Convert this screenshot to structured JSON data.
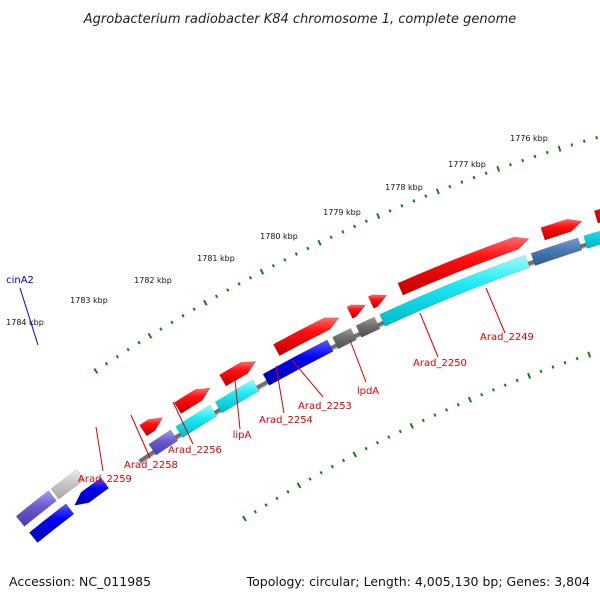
{
  "title": "Agrobacterium radiobacter K84 chromosome 1, complete genome",
  "footer": {
    "accession": "Accession: NC_011985",
    "summary": "Topology: circular; Length: 4,005,130 bp; Genes: 3,804"
  },
  "scale": {
    "labels": [
      "1776 kbp",
      "1777 kbp",
      "1778 kbp",
      "1779 kbp",
      "1780 kbp",
      "1781 kbp",
      "1782 kbp",
      "1783 kbp",
      "1784 kbp"
    ]
  },
  "genes": [
    {
      "name": "cinA2",
      "color": "#0000cc"
    },
    {
      "name": "Arad_2249",
      "color": "#dd0000"
    },
    {
      "name": "Arad_2250",
      "color": "#dd0000"
    },
    {
      "name": "lpdA",
      "color": "#dd0000"
    },
    {
      "name": "Arad_2253",
      "color": "#dd0000"
    },
    {
      "name": "Arad_2254",
      "color": "#dd0000"
    },
    {
      "name": "lipA",
      "color": "#dd0000"
    },
    {
      "name": "Arad_2256",
      "color": "#dd0000"
    },
    {
      "name": "Arad_2258",
      "color": "#dd0000"
    },
    {
      "name": "Arad_2259",
      "color": "#dd0000"
    }
  ],
  "colors": {
    "forward_cds": "#ff0000",
    "reverse_cds": "#00e5f0",
    "reverse_alt": "#0000ff",
    "other": "#6a5acd",
    "gray": "#777777",
    "backbone": "#888888",
    "ticks": "#1a7a1a"
  }
}
